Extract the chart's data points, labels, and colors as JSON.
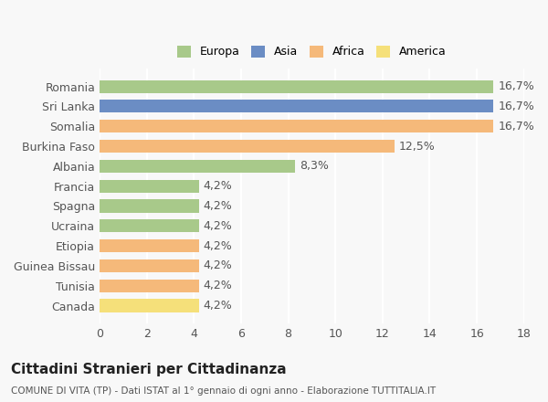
{
  "categories": [
    "Canada",
    "Tunisia",
    "Guinea Bissau",
    "Etiopia",
    "Ucraina",
    "Spagna",
    "Francia",
    "Albania",
    "Burkina Faso",
    "Somalia",
    "Sri Lanka",
    "Romania"
  ],
  "values": [
    4.2,
    4.2,
    4.2,
    4.2,
    4.2,
    4.2,
    4.2,
    8.3,
    12.5,
    16.7,
    16.7,
    16.7
  ],
  "labels": [
    "4,2%",
    "4,2%",
    "4,2%",
    "4,2%",
    "4,2%",
    "4,2%",
    "4,2%",
    "8,3%",
    "12,5%",
    "16,7%",
    "16,7%",
    "16,7%"
  ],
  "colors": [
    "#f5e07a",
    "#f5b97a",
    "#f5b97a",
    "#f5b97a",
    "#a8c98a",
    "#a8c98a",
    "#a8c98a",
    "#a8c98a",
    "#f5b97a",
    "#f5b97a",
    "#6b8dc4",
    "#a8c98a"
  ],
  "continent": [
    "America",
    "Africa",
    "Africa",
    "Africa",
    "Europa",
    "Europa",
    "Europa",
    "Europa",
    "Africa",
    "Africa",
    "Asia",
    "Europa"
  ],
  "legend_labels": [
    "Europa",
    "Asia",
    "Africa",
    "America"
  ],
  "legend_colors": [
    "#a8c98a",
    "#6b8dc4",
    "#f5b97a",
    "#f5e07a"
  ],
  "title": "Cittadini Stranieri per Cittadinanza",
  "subtitle": "COMUNE DI VITA (TP) - Dati ISTAT al 1° gennaio di ogni anno - Elaborazione TUTTITALIA.IT",
  "xlim": [
    0,
    18
  ],
  "xticks": [
    0,
    2,
    4,
    6,
    8,
    10,
    12,
    14,
    16,
    18
  ],
  "bg_color": "#f8f8f8",
  "grid_color": "#ffffff",
  "bar_height": 0.65,
  "label_fontsize": 9,
  "tick_fontsize": 9
}
